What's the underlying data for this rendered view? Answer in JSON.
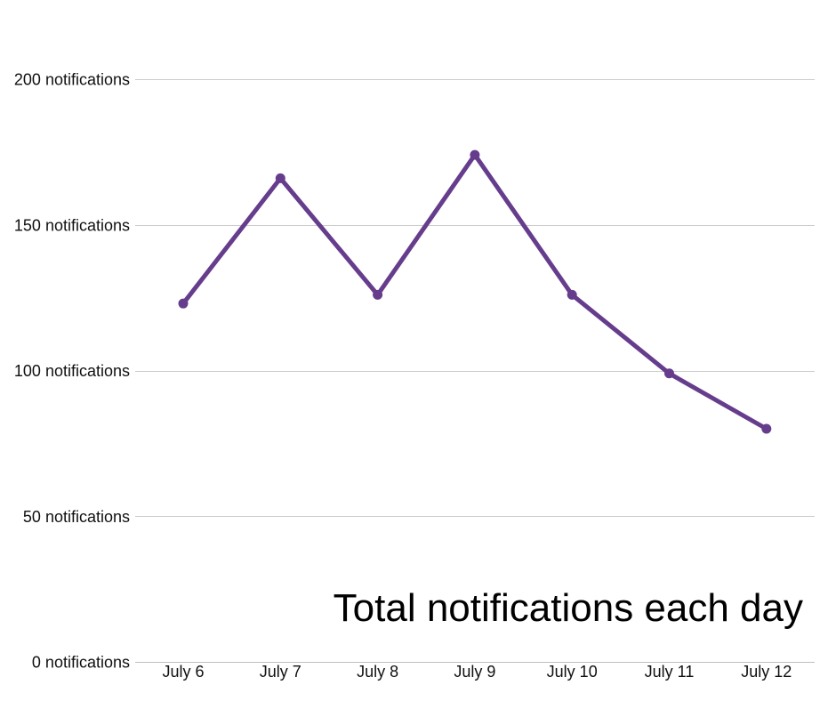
{
  "chart_data": {
    "type": "line",
    "title": "Total notifications each day",
    "xlabel": "",
    "ylabel": "",
    "categories": [
      "July 6",
      "July 7",
      "July 8",
      "July 9",
      "July 10",
      "July 11",
      "July 12"
    ],
    "series": [
      {
        "values": [
          123,
          166,
          126,
          174,
          126,
          99,
          80
        ],
        "color": "#663d8c"
      }
    ],
    "ylim": [
      0,
      200
    ],
    "yticks": [
      0,
      50,
      100,
      150,
      200
    ],
    "ytick_labels": [
      "0 notifications",
      "50 notifications",
      "100 notifications",
      "150 notifications",
      "200 notifications"
    ],
    "grid": true,
    "legend": "none"
  }
}
